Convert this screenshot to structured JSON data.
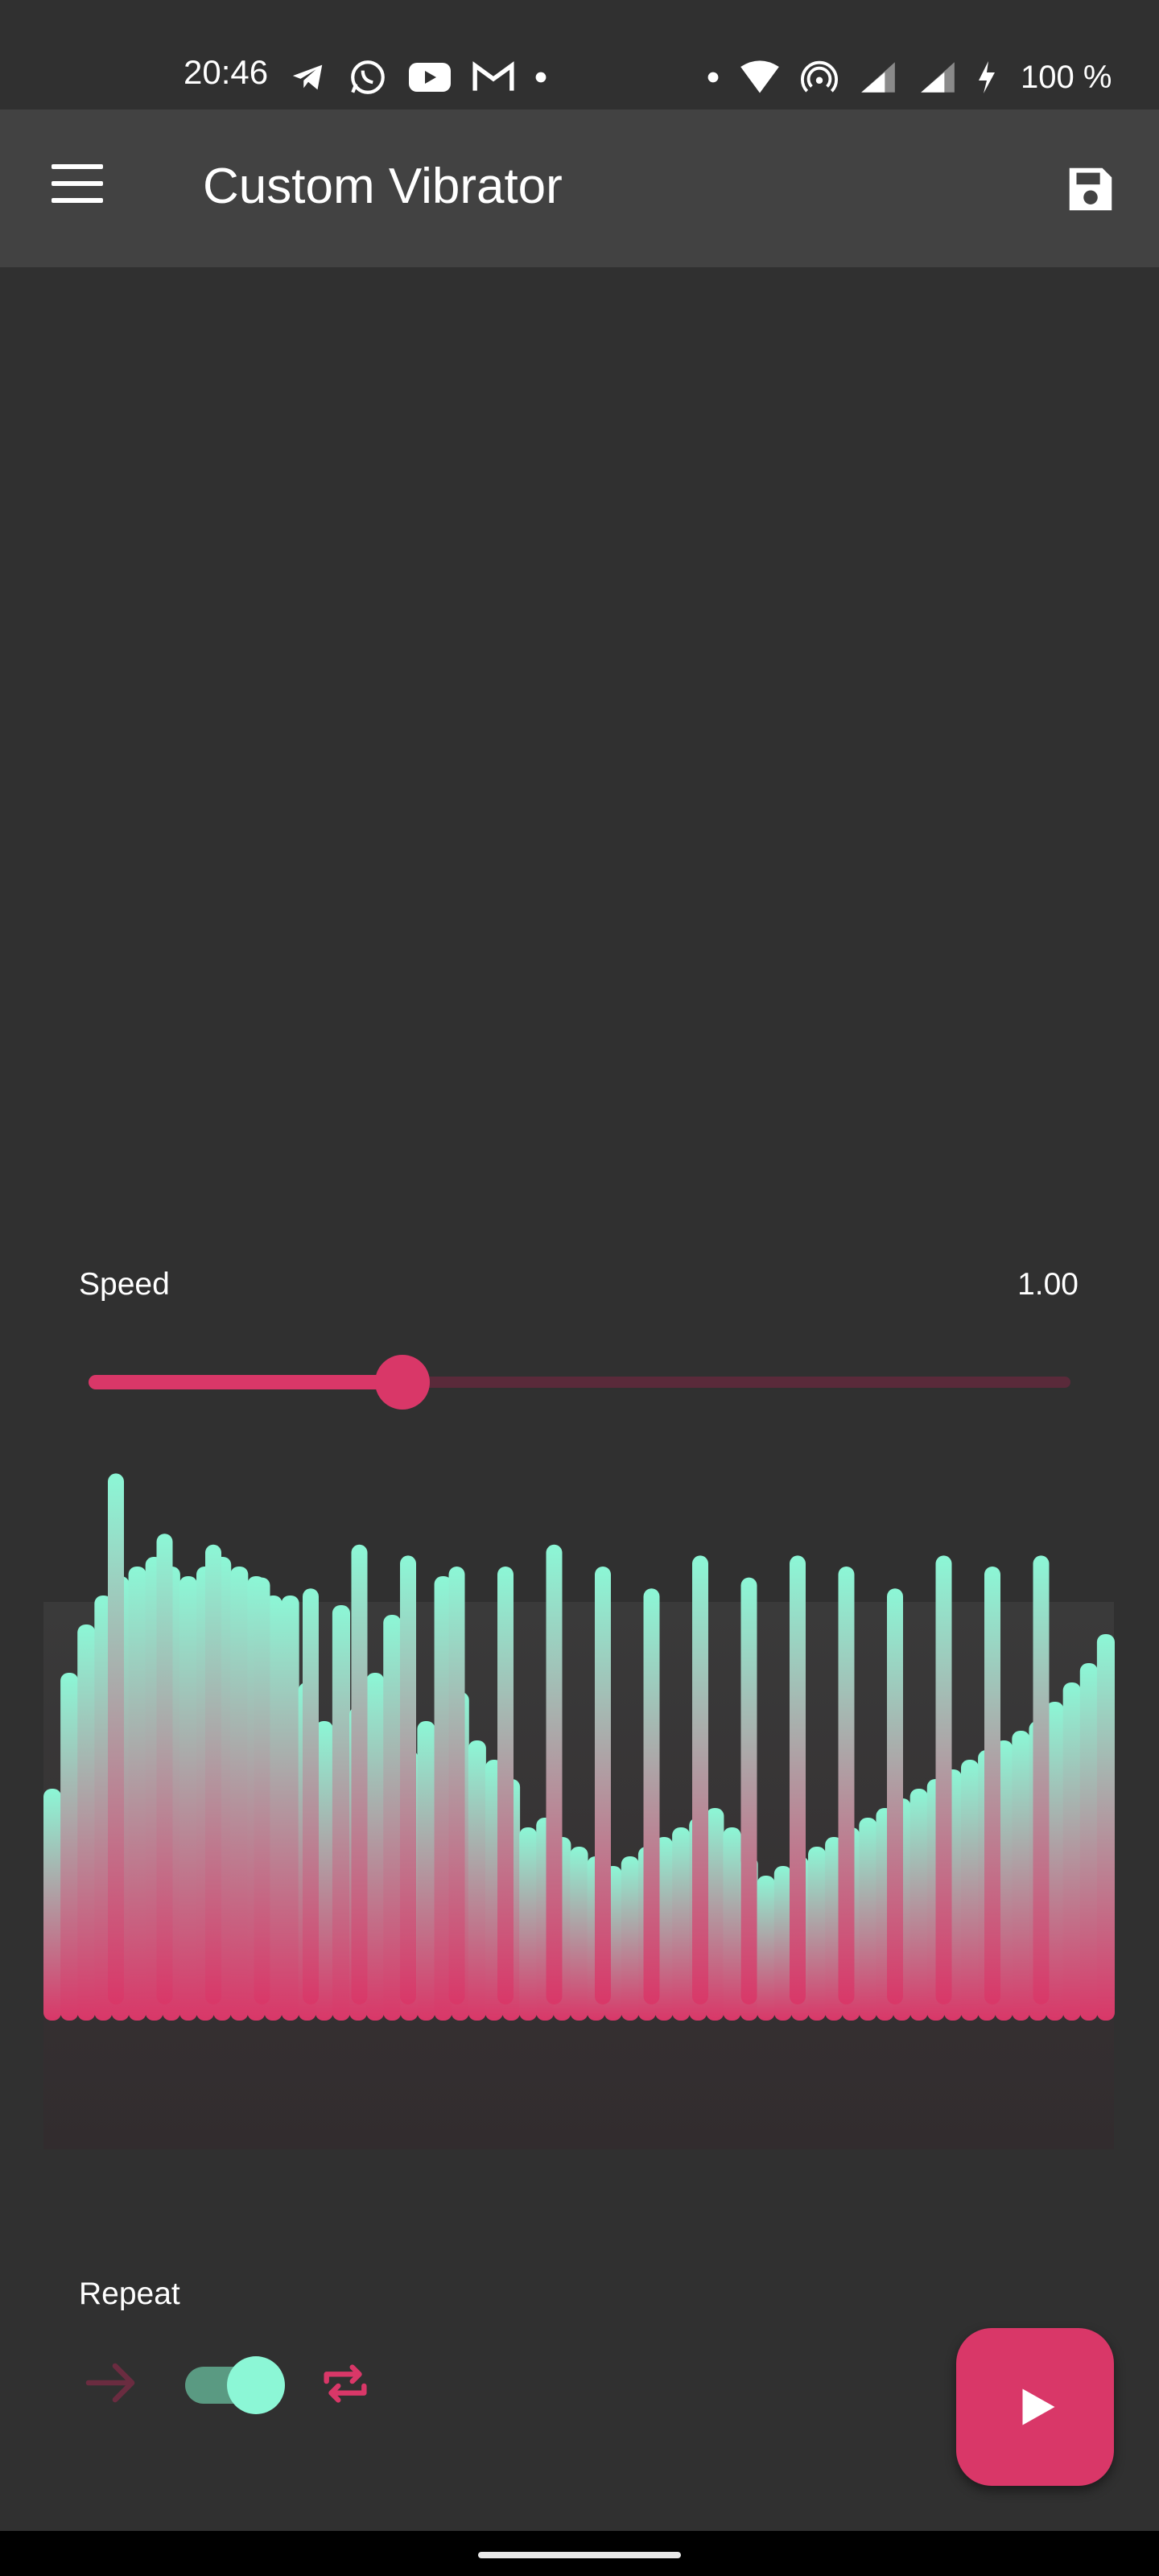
{
  "status_bar": {
    "time": "20:46",
    "battery": "100 %",
    "left_icons": [
      "telegram-icon",
      "whatsapp-icon",
      "youtube-icon",
      "gmail-icon",
      "dot-icon"
    ],
    "right_icons": [
      "dot-icon",
      "wifi-icon",
      "hotspot-icon",
      "signal-icon",
      "signal-icon",
      "charging-icon"
    ]
  },
  "app_bar": {
    "title": "Custom Vibrator",
    "menu_icon": "menu-icon",
    "save_icon": "save-icon"
  },
  "speed": {
    "label": "Speed",
    "value": "1.00",
    "slider_fraction": 0.32,
    "active_color": "#d93768",
    "inactive_color": "#5a2a3a"
  },
  "waveform": {
    "top_color": "#8cf7d6",
    "bottom_color": "#d93768",
    "intensity": [
      0.38,
      0.62,
      0.72,
      0.78,
      0.82,
      0.84,
      0.86,
      0.84,
      0.82,
      0.84,
      0.86,
      0.84,
      0.82,
      0.78,
      0.78,
      0.6,
      0.52,
      0.76,
      0.55,
      0.62,
      0.74,
      0.46,
      0.52,
      0.82,
      0.58,
      0.48,
      0.44,
      0.4,
      0.3,
      0.32,
      0.28,
      0.26,
      0.24,
      0.22,
      0.24,
      0.26,
      0.28,
      0.3,
      0.32,
      0.34,
      0.3,
      0.24,
      0.2,
      0.22,
      0.24,
      0.26,
      0.28,
      0.3,
      0.32,
      0.34,
      0.36,
      0.38,
      0.4,
      0.42,
      0.44,
      0.46,
      0.48,
      0.5,
      0.52,
      0.56,
      0.6,
      0.64,
      0.7
    ],
    "peak_spikes": [
      0.97,
      0.86,
      0.84,
      0.78,
      0.76,
      0.84,
      0.82,
      0.8,
      0.8,
      0.84,
      0.8,
      0.76,
      0.82,
      0.78,
      0.82,
      0.8,
      0.76,
      0.82,
      0.8,
      0.82
    ]
  },
  "repeat": {
    "label": "Repeat",
    "enabled": true,
    "arrow_icon": "arrow-right-icon",
    "repeat_icon": "repeat-icon",
    "toggle_on_color": "#8cf7d6"
  },
  "fab": {
    "icon": "play-icon",
    "color": "#d93768"
  }
}
